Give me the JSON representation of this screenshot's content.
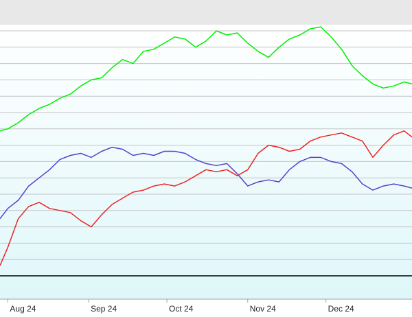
{
  "chart_data": {
    "type": "line",
    "title": "",
    "xlabel": "",
    "ylabel": "",
    "x_ticks": [
      "Aug 24",
      "Sep 24",
      "Oct 24",
      "Nov 24",
      "Dec 24"
    ],
    "x_tick_dates": [
      "2024-08-01",
      "2024-09-01",
      "2024-10-01",
      "2024-11-01",
      "2024-12-01"
    ],
    "x_range": [
      "2024-07-29",
      "2025-01-03"
    ],
    "ylim": [
      0,
      120
    ],
    "grid": true,
    "legend": "none",
    "series": [
      {
        "color": "#00ee00",
        "x": [
          "2024-07-29",
          "2024-08-01",
          "2024-08-05",
          "2024-08-09",
          "2024-08-13",
          "2024-08-17",
          "2024-08-21",
          "2024-08-25",
          "2024-08-29",
          "2024-09-02",
          "2024-09-06",
          "2024-09-10",
          "2024-09-14",
          "2024-09-18",
          "2024-09-22",
          "2024-09-26",
          "2024-09-30",
          "2024-10-04",
          "2024-10-08",
          "2024-10-12",
          "2024-10-16",
          "2024-10-20",
          "2024-10-24",
          "2024-10-28",
          "2024-11-01",
          "2024-11-05",
          "2024-11-09",
          "2024-11-13",
          "2024-11-17",
          "2024-11-21",
          "2024-11-25",
          "2024-11-29",
          "2024-12-03",
          "2024-12-07",
          "2024-12-11",
          "2024-12-15",
          "2024-12-19",
          "2024-12-23",
          "2024-12-27",
          "2024-12-31",
          "2025-01-03"
        ],
        "y": [
          71,
          72,
          75,
          79,
          82,
          84,
          87,
          89,
          93,
          96,
          97,
          102,
          106,
          104,
          110,
          111,
          114,
          117,
          116,
          112,
          115,
          120,
          118,
          119,
          114,
          110,
          107,
          112,
          116,
          118,
          121,
          122,
          117,
          111,
          103,
          98,
          94,
          92,
          93,
          95,
          94
        ]
      },
      {
        "color": "#ee2222",
        "x": [
          "2024-07-29",
          "2024-08-01",
          "2024-08-05",
          "2024-08-09",
          "2024-08-13",
          "2024-08-17",
          "2024-08-21",
          "2024-08-25",
          "2024-08-29",
          "2024-09-02",
          "2024-09-06",
          "2024-09-10",
          "2024-09-14",
          "2024-09-18",
          "2024-09-22",
          "2024-09-26",
          "2024-09-30",
          "2024-10-04",
          "2024-10-08",
          "2024-10-12",
          "2024-10-16",
          "2024-10-20",
          "2024-10-24",
          "2024-10-28",
          "2024-11-01",
          "2024-11-05",
          "2024-11-09",
          "2024-11-13",
          "2024-11-17",
          "2024-11-21",
          "2024-11-25",
          "2024-11-29",
          "2024-12-03",
          "2024-12-07",
          "2024-12-11",
          "2024-12-15",
          "2024-12-19",
          "2024-12-23",
          "2024-12-27",
          "2024-12-31",
          "2025-01-03"
        ],
        "y": [
          5,
          14,
          28,
          34,
          36,
          33,
          32,
          31,
          27,
          24,
          30,
          35,
          38,
          41,
          42,
          44,
          45,
          44,
          46,
          49,
          52,
          51,
          52,
          49,
          52,
          60,
          64,
          63,
          61,
          62,
          66,
          68,
          69,
          70,
          68,
          66,
          58,
          64,
          69,
          71,
          68
        ]
      },
      {
        "color": "#5540cc",
        "x": [
          "2024-07-29",
          "2024-08-01",
          "2024-08-05",
          "2024-08-09",
          "2024-08-13",
          "2024-08-17",
          "2024-08-21",
          "2024-08-25",
          "2024-08-29",
          "2024-09-02",
          "2024-09-06",
          "2024-09-10",
          "2024-09-14",
          "2024-09-18",
          "2024-09-22",
          "2024-09-26",
          "2024-09-30",
          "2024-10-04",
          "2024-10-08",
          "2024-10-12",
          "2024-10-16",
          "2024-10-20",
          "2024-10-24",
          "2024-10-28",
          "2024-11-01",
          "2024-11-05",
          "2024-11-09",
          "2024-11-13",
          "2024-11-17",
          "2024-11-21",
          "2024-11-25",
          "2024-11-29",
          "2024-12-03",
          "2024-12-07",
          "2024-12-11",
          "2024-12-15",
          "2024-12-19",
          "2024-12-23",
          "2024-12-27",
          "2024-12-31",
          "2025-01-03"
        ],
        "y": [
          28,
          33,
          37,
          44,
          48,
          52,
          57,
          59,
          60,
          58,
          61,
          63,
          62,
          59,
          60,
          59,
          61,
          61,
          60,
          57,
          55,
          54,
          55,
          50,
          44,
          46,
          47,
          46,
          52,
          56,
          58,
          58,
          56,
          55,
          51,
          45,
          42,
          44,
          45,
          44,
          43
        ]
      }
    ]
  },
  "colors": {
    "background_top": "#ffffff",
    "background_bottom": "#dff7fa",
    "grid": "#c4c4c4",
    "axis": "#222222",
    "frame": "#a0a0a0",
    "top_band": "#e8e8e8"
  }
}
